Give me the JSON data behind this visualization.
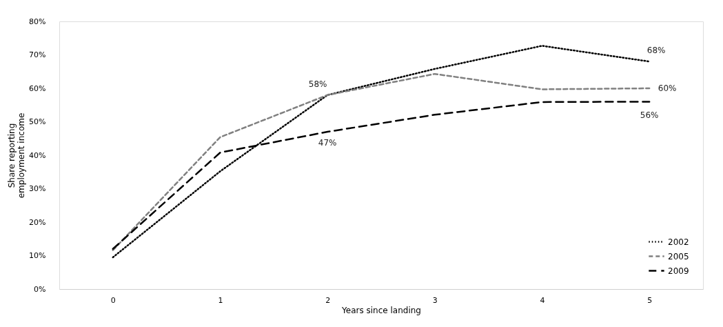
{
  "chart_data": {
    "type": "line",
    "xlabel": "Years since landing",
    "ylabel": "Share reporting employment income",
    "categories": [
      "0",
      "1",
      "2",
      "3",
      "4",
      "5"
    ],
    "series": [
      {
        "name": "2002",
        "color": "#000000",
        "line_style": "dotted",
        "values": [
          9.5,
          35.2,
          58,
          65.8,
          72.7,
          68
        ],
        "value_labels": [
          null,
          null,
          null,
          null,
          null,
          "68%"
        ]
      },
      {
        "name": "2005",
        "color": "#808080",
        "line_style": "dashed",
        "values": [
          11.6,
          45.4,
          58,
          64.3,
          59.7,
          60
        ],
        "value_labels": [
          null,
          null,
          "58%",
          null,
          null,
          "60%"
        ]
      },
      {
        "name": "2009",
        "color": "#000000",
        "line_style": "longdash",
        "values": [
          12,
          40.8,
          47,
          52.1,
          55.9,
          56
        ],
        "value_labels": [
          null,
          null,
          "47%",
          null,
          null,
          "56%"
        ]
      }
    ],
    "ylim": [
      0,
      80
    ],
    "yticks": [
      {
        "value": 0,
        "label": "0%"
      },
      {
        "value": 10,
        "label": "10%"
      },
      {
        "value": 20,
        "label": "20%"
      },
      {
        "value": 30,
        "label": "30%"
      },
      {
        "value": 40,
        "label": "40%"
      },
      {
        "value": 50,
        "label": "50%"
      },
      {
        "value": 60,
        "label": "60%"
      },
      {
        "value": 70,
        "label": "70%"
      },
      {
        "value": 80,
        "label": "80%"
      }
    ],
    "grid": false,
    "legend": "bottom right",
    "marker": "none"
  }
}
